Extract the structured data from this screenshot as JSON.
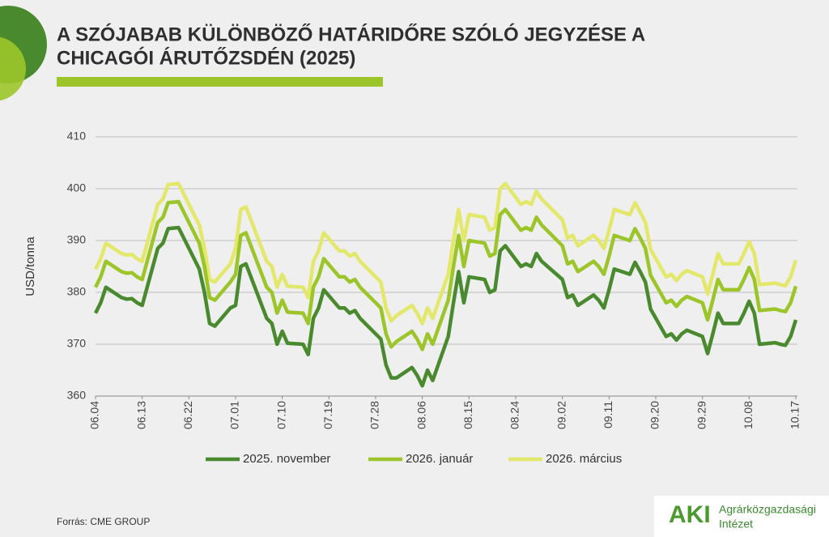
{
  "chart_data": {
    "type": "line",
    "title_lines": [
      "A SZÓJABAB KÜLÖNBÖZŐ HATÁRIDŐRE SZÓLÓ JEGYZÉSE A",
      "CHICAGÓI ÁRUTŐZSDÉN (2025)"
    ],
    "y_label": "USD/tonna",
    "source": "Forrás: CME GROUP",
    "logo": {
      "mark": "AKI",
      "name_lines": [
        "Agrárközgazdasági",
        "Intézet"
      ]
    },
    "ylim": [
      360,
      410
    ],
    "yticks": [
      360,
      370,
      380,
      390,
      400,
      410
    ],
    "grid": true,
    "xlim": [
      "06.04",
      "10.17"
    ],
    "xticks": [
      "06.04",
      "06.13",
      "06.22",
      "07.01",
      "07.10",
      "07.19",
      "07.28",
      "08.06",
      "08.15",
      "08.24",
      "09.02",
      "09.11",
      "09.20",
      "09.29",
      "10.08",
      "10.17"
    ],
    "x": [
      "06.04",
      "06.05",
      "06.06",
      "06.09",
      "06.10",
      "06.11",
      "06.12",
      "06.13",
      "06.16",
      "06.17",
      "06.18",
      "06.20",
      "06.23",
      "06.24",
      "06.25",
      "06.26",
      "06.27",
      "06.30",
      "07.01",
      "07.02",
      "07.03",
      "07.07",
      "07.08",
      "07.09",
      "07.10",
      "07.11",
      "07.14",
      "07.15",
      "07.16",
      "07.17",
      "07.18",
      "07.21",
      "07.22",
      "07.23",
      "07.24",
      "07.25",
      "07.28",
      "07.29",
      "07.30",
      "07.31",
      "08.01",
      "08.04",
      "08.05",
      "08.06",
      "08.07",
      "08.08",
      "08.11",
      "08.12",
      "08.13",
      "08.14",
      "08.15",
      "08.18",
      "08.19",
      "08.20",
      "08.21",
      "08.22",
      "08.25",
      "08.26",
      "08.27",
      "08.28",
      "08.29",
      "09.02",
      "09.03",
      "09.04",
      "09.05",
      "09.08",
      "09.09",
      "09.10",
      "09.11",
      "09.12",
      "09.15",
      "09.16",
      "09.17",
      "09.18",
      "09.19",
      "09.22",
      "09.23",
      "09.24",
      "09.25",
      "09.26",
      "09.29",
      "09.30",
      "10.01",
      "10.02",
      "10.03",
      "10.06",
      "10.07",
      "10.08",
      "10.09",
      "10.10",
      "10.13",
      "10.14",
      "10.15",
      "10.16",
      "10.17"
    ],
    "series": [
      {
        "name": "2025. november",
        "color": "#4a8a2e",
        "values": [
          376,
          378,
          381,
          379,
          378.7,
          378.8,
          378,
          377.5,
          388.5,
          389.5,
          392.3,
          392.5,
          386.5,
          384.5,
          380,
          374,
          373.5,
          377,
          377.5,
          385,
          385.5,
          375,
          374,
          370,
          372.5,
          370.2,
          370,
          368,
          375,
          377,
          380.5,
          377,
          377,
          376,
          376.5,
          375,
          372,
          371,
          366,
          363.5,
          363.5,
          365.5,
          364,
          362,
          365,
          363,
          371.5,
          378,
          384,
          378,
          383,
          382.5,
          380,
          380.5,
          388,
          389,
          385,
          385.5,
          385,
          387.5,
          386,
          382.5,
          379,
          379.5,
          377.5,
          379.5,
          378.5,
          377,
          380.5,
          384.5,
          383.5,
          385.8,
          384,
          382,
          376.8,
          371.5,
          372,
          370.8,
          372,
          372.7,
          371.5,
          368.2,
          372,
          376,
          374,
          374,
          376,
          378.3,
          376,
          370,
          370.3,
          370,
          369.8,
          371.5,
          374.7
        ]
      },
      {
        "name": "2026. január",
        "color": "#9cc52a",
        "values": [
          381,
          383,
          386,
          384,
          383.7,
          383.8,
          383,
          382.5,
          393.5,
          394.5,
          397.3,
          397.5,
          391.5,
          389.5,
          385,
          379,
          378.5,
          382,
          383.5,
          391,
          391.5,
          381,
          380,
          376,
          378.5,
          376.2,
          376,
          374,
          381,
          383,
          386.5,
          383,
          383,
          382,
          382.5,
          381,
          378,
          377,
          372,
          369.5,
          370.5,
          372.5,
          371,
          369,
          372,
          370,
          378.5,
          385,
          391,
          385,
          390,
          389.5,
          387,
          387.5,
          395,
          396,
          392,
          392.5,
          392,
          394.5,
          393,
          389,
          385.5,
          386,
          384,
          386,
          385,
          383.5,
          387,
          391,
          390,
          392.3,
          390.5,
          388.5,
          383.3,
          378,
          378.5,
          377.3,
          378.5,
          379.2,
          378,
          374.7,
          378.5,
          382.5,
          380.5,
          380.5,
          382.5,
          384.8,
          382.5,
          376.5,
          376.8,
          376.5,
          376.3,
          378,
          381.2
        ]
      },
      {
        "name": "2026. március",
        "color": "#e3e86a",
        "values": [
          384.5,
          386.5,
          389.5,
          387.5,
          387.2,
          387.3,
          386.5,
          386,
          397,
          398,
          400.8,
          401,
          395,
          393,
          388.5,
          382.5,
          382,
          385.5,
          388.5,
          396,
          396.5,
          386,
          385,
          381,
          383.5,
          381.2,
          381,
          379,
          386,
          388,
          391.5,
          388,
          388,
          387,
          387.5,
          386,
          383,
          382,
          377,
          374.5,
          375.5,
          377.5,
          376,
          374,
          377,
          375,
          383.5,
          390,
          396,
          390,
          395,
          394.5,
          392,
          392.5,
          400,
          401,
          397,
          397.5,
          397,
          399.5,
          398,
          394,
          390.5,
          391,
          389,
          391,
          390,
          388.5,
          392,
          396,
          395,
          397.3,
          395.5,
          393.5,
          388.3,
          383,
          383.5,
          382.3,
          383.5,
          384.2,
          383,
          379.7,
          383.5,
          387.5,
          385.5,
          385.5,
          387.5,
          389.8,
          387.5,
          381.5,
          381.8,
          381.5,
          381.3,
          383,
          386.2
        ]
      }
    ]
  }
}
